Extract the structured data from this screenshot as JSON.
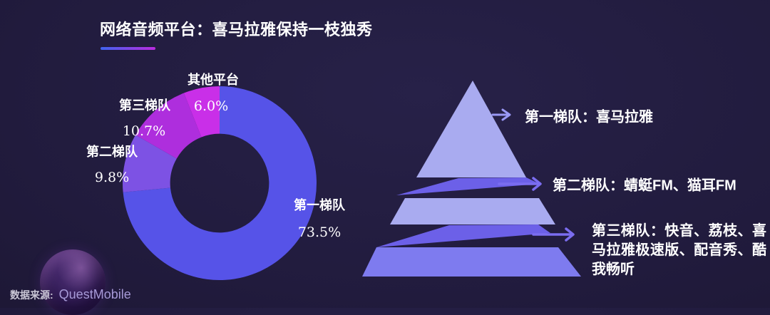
{
  "page": {
    "title": "网络音频平台：喜马拉雅保持一枝独秀",
    "source_label": "数据来源:",
    "source_value": "QuestMobile"
  },
  "palette": {
    "background_center": "#272148",
    "background_edge": "#171227",
    "title_underline_from": "#3f64ee",
    "title_underline_to": "#bb2be0",
    "text": "#ffffff",
    "pyramid_light": "#a9abf0",
    "pyramid_band": "#6c60e8",
    "pyramid_base": "#7e7bef",
    "arrow1": "#9a99f5",
    "arrow23": "#7b6df0"
  },
  "chart_data": {
    "type": "pie",
    "donut": true,
    "title": "网络音频平台：喜马拉雅保持一枝独秀",
    "categories": [
      "第一梯队",
      "第二梯队",
      "第三梯队",
      "其他平台"
    ],
    "values": [
      73.5,
      9.8,
      10.7,
      6.0
    ],
    "display_values": [
      "73.5%",
      "9.8%",
      "10.7%",
      "6.0%"
    ],
    "unit": "%",
    "colors": [
      "#5653e8",
      "#7d52e4",
      "#ae2edd",
      "#c92fe8"
    ],
    "start_angle_deg": 0,
    "direction": "clockwise",
    "inner_radius_ratio": 0.51,
    "legend_position": "none"
  },
  "pyramid": {
    "levels": [
      {
        "rank": 1,
        "label": "第一梯队：喜马拉雅"
      },
      {
        "rank": 2,
        "label": "第二梯队：蜻蜓FM、猫耳FM"
      },
      {
        "rank": 3,
        "label": "第三梯队：快音、荔枝、喜马拉雅极速版、配音秀、酷我畅听"
      }
    ]
  }
}
